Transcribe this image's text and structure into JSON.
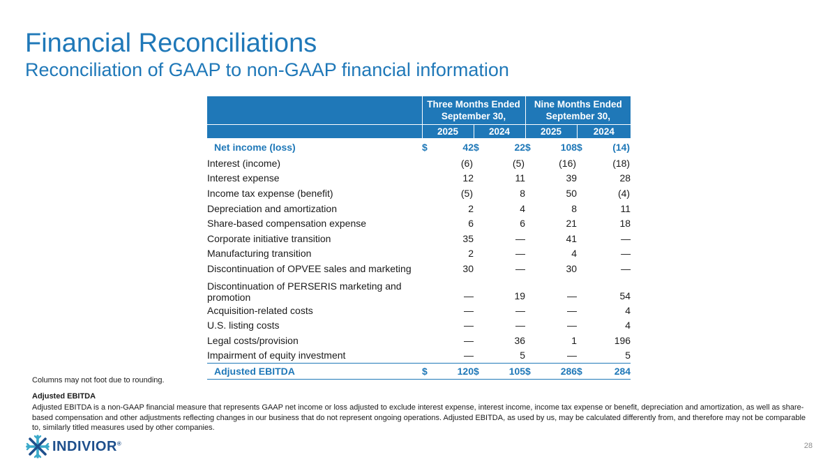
{
  "slide": {
    "title": "Financial Reconciliations",
    "subtitle": "Reconciliation of GAAP to non-GAAP financial information",
    "page_number": "28"
  },
  "table": {
    "group_headers": [
      "Three Months Ended September 30,",
      "Nine Months Ended September 30,"
    ],
    "year_headers": [
      "2025",
      "2024",
      "2025",
      "2024"
    ],
    "net_income": {
      "label": "Net income (loss)",
      "currency": "$",
      "values": [
        "42",
        "22",
        "108",
        "(14)"
      ]
    },
    "rows": [
      {
        "label": "Interest (income)",
        "values": [
          "(6)",
          "(5)",
          "(16)",
          "(18)"
        ]
      },
      {
        "label": "Interest expense",
        "values": [
          "12",
          "11",
          "39",
          "28"
        ]
      },
      {
        "label": "Income tax expense (benefit)",
        "values": [
          "(5)",
          "8",
          "50",
          "(4)"
        ]
      },
      {
        "label": "Depreciation and amortization",
        "values": [
          "2",
          "4",
          "8",
          "11"
        ]
      },
      {
        "label": "Share-based compensation expense",
        "values": [
          "6",
          "6",
          "21",
          "18"
        ]
      },
      {
        "label": "Corporate initiative transition",
        "values": [
          "35",
          "—",
          "41",
          "—"
        ]
      },
      {
        "label": "Manufacturing transition",
        "values": [
          "2",
          "—",
          "4",
          "—"
        ]
      },
      {
        "label": "Discontinuation of OPVEE sales and marketing",
        "values": [
          "30",
          "—",
          "30",
          "—"
        ]
      },
      {
        "label": "Discontinuation of PERSERIS marketing and promotion",
        "values": [
          "—",
          "19",
          "—",
          "54"
        ]
      },
      {
        "label": "Acquisition-related costs",
        "values": [
          "—",
          "—",
          "—",
          "4"
        ]
      },
      {
        "label": "U.S. listing costs",
        "values": [
          "—",
          "—",
          "—",
          "4"
        ]
      },
      {
        "label": "Legal costs/provision",
        "values": [
          "—",
          "36",
          "1",
          "196"
        ]
      },
      {
        "label": "Impairment of equity investment",
        "values": [
          "—",
          "5",
          "—",
          "5"
        ]
      }
    ],
    "total": {
      "label": "Adjusted EBITDA",
      "currency": "$",
      "values": [
        "120",
        "105",
        "286",
        "284"
      ]
    }
  },
  "footnotes": {
    "rounding": "Columns may not foot due to rounding.",
    "definition_title": "Adjusted EBITDA",
    "definition_text": "Adjusted EBITDA is a non-GAAP financial measure that represents GAAP net income or loss adjusted to exclude interest expense, interest income, income tax expense or benefit, depreciation and amortization, as well as share-based compensation and other adjustments reflecting changes in our business that do not represent ongoing operations. Adjusted EBITDA, as used by us, may be calculated differently from, and therefore may not be comparable to, similarly titled measures used by other companies."
  },
  "logo": {
    "text": "INDIVIOR",
    "registered": "®"
  },
  "colors": {
    "accent": "#1f78b8",
    "logo_dark": "#1e4f8c",
    "logo_light": "#3aa9c9"
  }
}
